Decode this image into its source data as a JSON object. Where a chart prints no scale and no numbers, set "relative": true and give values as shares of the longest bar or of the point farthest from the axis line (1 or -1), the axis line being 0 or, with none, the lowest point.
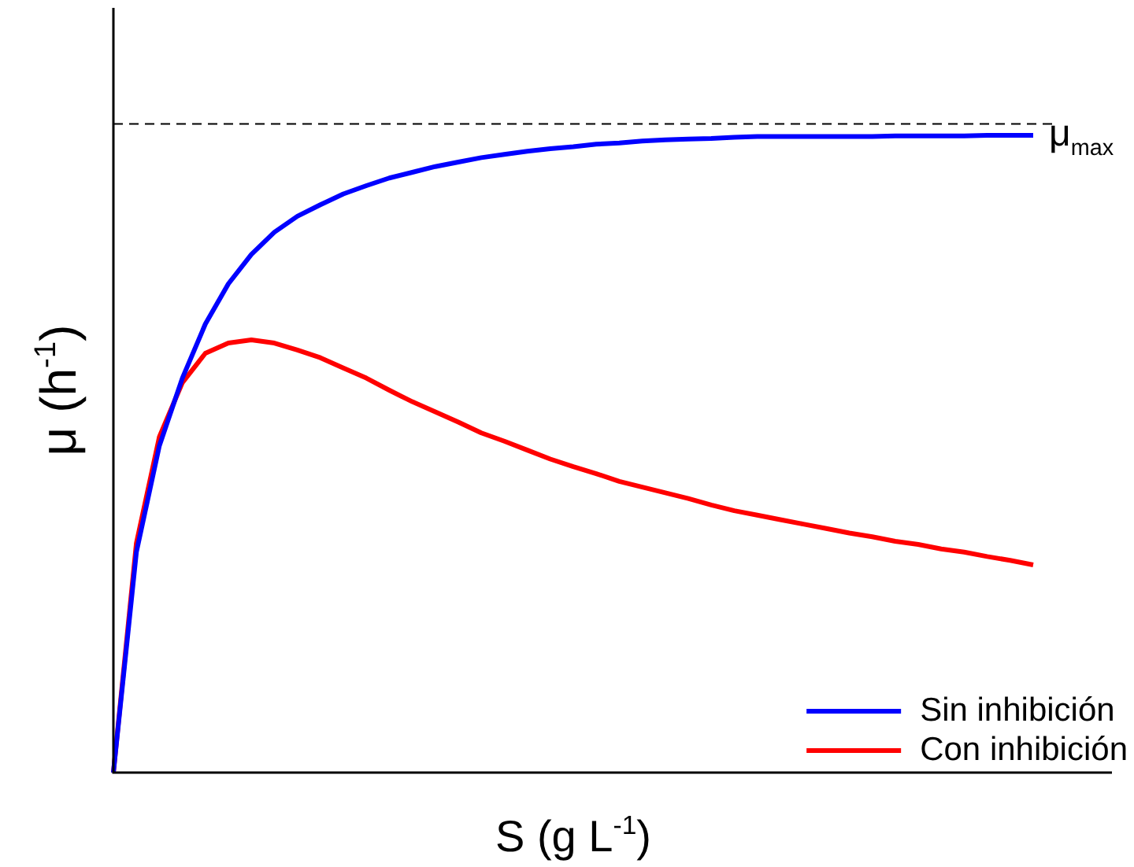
{
  "chart_data": {
    "type": "line",
    "relative": true,
    "xlabel": "S (g L$^{-1}$)",
    "ylabel": "μ (h$^{-1}$)",
    "categories": [
      null,
      null,
      null,
      null,
      null,
      null,
      null,
      null,
      null,
      null,
      null,
      null,
      null,
      null,
      null,
      null,
      null,
      null,
      null,
      null,
      null,
      null,
      null,
      null,
      null,
      null,
      null,
      null,
      null,
      null,
      null,
      null,
      null,
      null,
      null,
      null,
      null,
      null,
      null,
      null,
      null
    ],
    "series": [
      {
        "name": "Sin inhibición",
        "color": "#0000ff",
        "values": [
          0,
          0.346,
          0.513,
          0.619,
          0.704,
          0.767,
          0.813,
          0.848,
          0.873,
          0.891,
          0.908,
          0.921,
          0.933,
          0.942,
          0.951,
          0.958,
          0.965,
          0.97,
          0.975,
          0.979,
          0.982,
          0.986,
          0.988,
          0.991,
          0.993,
          0.994,
          0.995,
          0.997,
          0.998,
          0.998,
          0.998,
          0.998,
          0.998,
          0.998,
          0.999,
          0.999,
          0.999,
          0.999,
          1,
          1,
          1
        ]
      },
      {
        "name": "Con inhibición",
        "color": "#ff0000",
        "values": [
          0,
          0.36,
          0.527,
          0.612,
          0.658,
          0.674,
          0.679,
          0.674,
          0.663,
          0.651,
          0.635,
          0.619,
          0.6,
          0.582,
          0.566,
          0.55,
          0.533,
          0.52,
          0.506,
          0.492,
          0.48,
          0.469,
          0.457,
          0.448,
          0.439,
          0.43,
          0.42,
          0.411,
          0.404,
          0.397,
          0.39,
          0.383,
          0.376,
          0.37,
          0.363,
          0.358,
          0.351,
          0.346,
          0.339,
          0.333,
          0.326
        ]
      }
    ],
    "ref_lines": [
      {
        "axis": "y",
        "value": 1.018,
        "label": "μ$_{max}$",
        "color": "#000000",
        "line_style": "dashed"
      }
    ],
    "legend": "bottom right",
    "marker": "none",
    "line_style": "solid"
  }
}
